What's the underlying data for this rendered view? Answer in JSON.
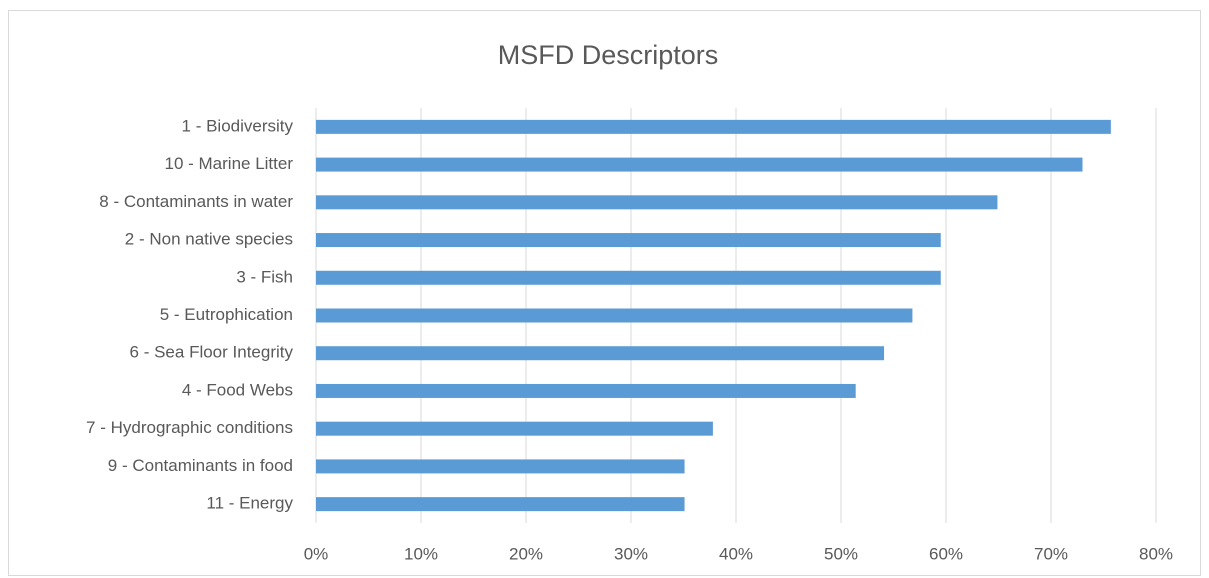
{
  "chart_data": {
    "type": "bar",
    "orientation": "horizontal",
    "title": "MSFD Descriptors",
    "categories": [
      "1 - Biodiversity",
      "10 - Marine Litter",
      "8 - Contaminants in water",
      "2 - Non native species",
      "3 - Fish",
      "5 - Eutrophication",
      "6 - Sea Floor Integrity",
      "4 - Food Webs",
      "7 - Hydrographic conditions",
      "9 - Contaminants in food",
      "11 - Energy"
    ],
    "values": [
      75.7,
      73.0,
      64.9,
      59.5,
      59.5,
      56.8,
      54.1,
      51.4,
      37.8,
      35.1,
      35.1
    ],
    "color": "#5b9bd5",
    "xlim": [
      0,
      80
    ],
    "xticks": [
      {
        "value": 0,
        "label": "0%"
      },
      {
        "value": 10,
        "label": "10%"
      },
      {
        "value": 20,
        "label": "20%"
      },
      {
        "value": 30,
        "label": "30%"
      },
      {
        "value": 40,
        "label": "40%"
      },
      {
        "value": 50,
        "label": "50%"
      },
      {
        "value": 60,
        "label": "60%"
      },
      {
        "value": 70,
        "label": "70%"
      },
      {
        "value": 80,
        "label": "80%"
      }
    ],
    "grid": true
  }
}
